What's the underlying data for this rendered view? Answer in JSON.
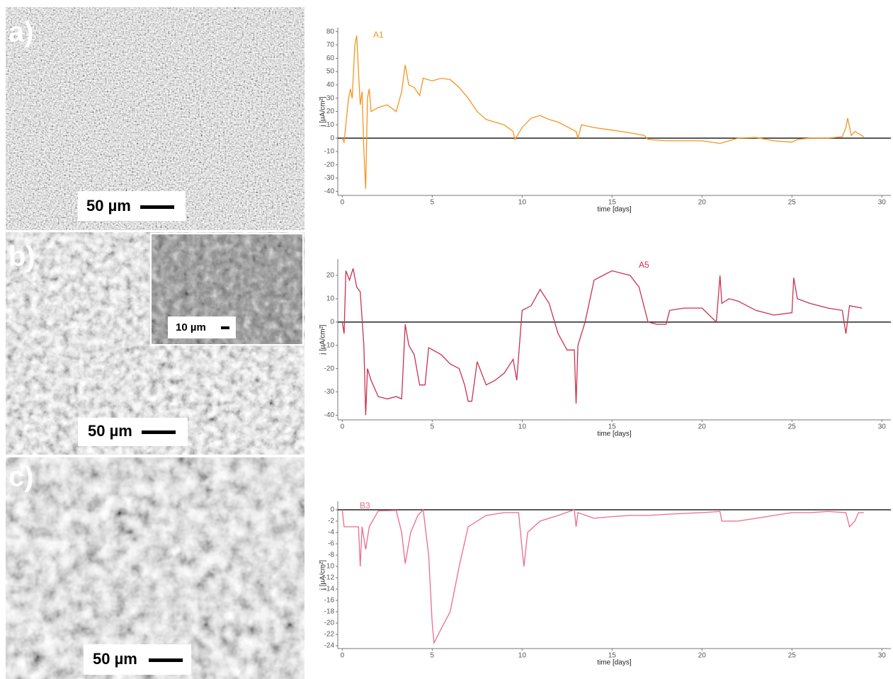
{
  "panels": [
    {
      "label": "a)",
      "scale_bar": "50 µm"
    },
    {
      "label": "b)",
      "scale_bar": "50 µm",
      "inset_scale_bar": "10 µm"
    },
    {
      "label": "c)",
      "scale_bar": "50 µm"
    }
  ],
  "chart_data": [
    {
      "type": "line",
      "x_label": "time [days]",
      "y_label": "j [µA/cm²]",
      "x": [
        0,
        0.1,
        0.2,
        0.35,
        0.45,
        0.55,
        0.7,
        0.8,
        0.9,
        1.0,
        1.1,
        1.2,
        1.3,
        1.4,
        1.5,
        1.6,
        2,
        2.5,
        3,
        3.3,
        3.5,
        3.7,
        4,
        4.3,
        4.5,
        5,
        5.5,
        6,
        6.5,
        7,
        7.5,
        8,
        9,
        9.5,
        9.6,
        10,
        10.5,
        11,
        11.5,
        12,
        13,
        13.1,
        13.3,
        14,
        15,
        16,
        16.8,
        17,
        18,
        20,
        21,
        21.5,
        22,
        23,
        24,
        25,
        25.3,
        26,
        27,
        27.8,
        28,
        28.1,
        28.3,
        28.5,
        29
      ],
      "series": [
        {
          "name": "A1",
          "color": "#f7941d",
          "values": [
            0,
            -3,
            10,
            30,
            37,
            30,
            70,
            77,
            50,
            25,
            35,
            -10,
            -38,
            30,
            37,
            20,
            23,
            25,
            20,
            35,
            55,
            40,
            38,
            32,
            45,
            43,
            45,
            44,
            38,
            30,
            20,
            14,
            10,
            5,
            -1,
            8,
            15,
            17,
            14,
            12,
            5,
            0,
            10,
            8,
            6,
            4,
            2,
            -1,
            -2,
            -2,
            -4,
            -2,
            0,
            0.5,
            -2,
            -3,
            -1,
            0,
            0,
            1,
            8,
            15,
            2,
            5,
            1
          ]
        }
      ],
      "xlim": [
        -0.25,
        30.5
      ],
      "ylim": [
        -43,
        83
      ],
      "xticks": [
        0,
        5,
        10,
        15,
        20,
        25,
        30
      ],
      "yticks": [
        -40,
        -30,
        -20,
        -10,
        0,
        10,
        20,
        30,
        40,
        50,
        60,
        70,
        80
      ]
    },
    {
      "type": "line",
      "x_label": "time [days]",
      "y_label": "j [µA/cm²]",
      "x": [
        0,
        0.1,
        0.2,
        0.4,
        0.6,
        0.8,
        1,
        1.2,
        1.3,
        1.4,
        1.6,
        2,
        2.5,
        3,
        3.3,
        3.5,
        3.7,
        4,
        4.3,
        4.6,
        4.8,
        5.5,
        6,
        6.5,
        6.8,
        7,
        7.2,
        7.5,
        8,
        8.5,
        9,
        9.5,
        9.7,
        10,
        10.5,
        11,
        11.5,
        12,
        12.5,
        12.9,
        13,
        13.1,
        13.5,
        14,
        14.5,
        15,
        15.5,
        16,
        16.5,
        17,
        17.5,
        18,
        18.2,
        19,
        20,
        20.8,
        21,
        21.1,
        21.5,
        22,
        23,
        24,
        25,
        25.1,
        25.3,
        26,
        27,
        27.8,
        28,
        28.2,
        28.9
      ],
      "series": [
        {
          "name": "A5",
          "color": "#c8324f",
          "values": [
            0,
            -5,
            22,
            18,
            23,
            15,
            13,
            -10,
            -40,
            -20,
            -25,
            -32,
            -33,
            -32,
            -33,
            -1,
            -10,
            -14,
            -27,
            -27,
            -11,
            -14,
            -18,
            -20,
            -27,
            -34,
            -34,
            -17,
            -27,
            -25,
            -22,
            -16,
            -25,
            5,
            7,
            14,
            8,
            -5,
            -12,
            -12,
            -35,
            -10,
            0,
            18,
            20,
            22,
            21,
            20,
            15,
            0,
            -1,
            -1,
            5,
            6,
            6,
            0,
            20,
            8,
            10,
            9,
            5,
            3,
            4,
            19,
            10,
            8,
            6,
            5,
            -5,
            7,
            6
          ]
        }
      ],
      "xlim": [
        -0.25,
        30.5
      ],
      "ylim": [
        -42,
        27
      ],
      "xticks": [
        0,
        5,
        10,
        15,
        20,
        25,
        30
      ],
      "yticks": [
        -40,
        -30,
        -20,
        -10,
        0,
        10,
        20
      ]
    },
    {
      "type": "line",
      "x_label": "time [days]",
      "y_label": "j [µA/cm²]",
      "x": [
        0,
        0.1,
        0.5,
        0.9,
        1,
        1.1,
        1.3,
        1.5,
        2,
        3,
        3.3,
        3.5,
        3.8,
        4.2,
        4.5,
        4.8,
        5,
        5.1,
        5.5,
        6,
        6.5,
        7,
        8,
        9,
        9.8,
        10,
        10.1,
        10.3,
        11,
        12,
        12.9,
        13,
        13.1,
        14,
        15,
        16,
        17,
        18,
        20,
        21,
        21.1,
        22,
        23,
        24,
        25,
        26,
        27,
        28,
        28.2,
        28.5,
        28.7,
        29
      ],
      "series": [
        {
          "name": "B3",
          "color": "#ec6b8c",
          "values": [
            0,
            -3,
            -3,
            -3,
            -10,
            -3,
            -7,
            -3,
            -0.2,
            -0.1,
            -4,
            -9.5,
            -4,
            -1,
            0,
            -8,
            -20,
            -23.5,
            -21,
            -18,
            -10,
            -3,
            -1,
            -0.5,
            -0.5,
            -7,
            -10,
            -4,
            -2,
            -1,
            0,
            -3,
            -0.5,
            -1.5,
            -1.2,
            -1,
            -1,
            -0.8,
            -0.5,
            -0.3,
            -2,
            -2,
            -1.5,
            -1,
            -0.5,
            -0.5,
            -0.3,
            -0.5,
            -3,
            -2,
            -0.5,
            -0.5
          ]
        }
      ],
      "xlim": [
        -0.25,
        30.5
      ],
      "ylim": [
        -24.5,
        1.5
      ],
      "xticks": [
        0,
        5,
        10,
        15,
        20,
        25,
        30
      ],
      "yticks": [
        0,
        -2,
        -4,
        -6,
        -8,
        -10,
        -12,
        -14,
        -16,
        -18,
        -20,
        -22,
        -24
      ]
    }
  ]
}
